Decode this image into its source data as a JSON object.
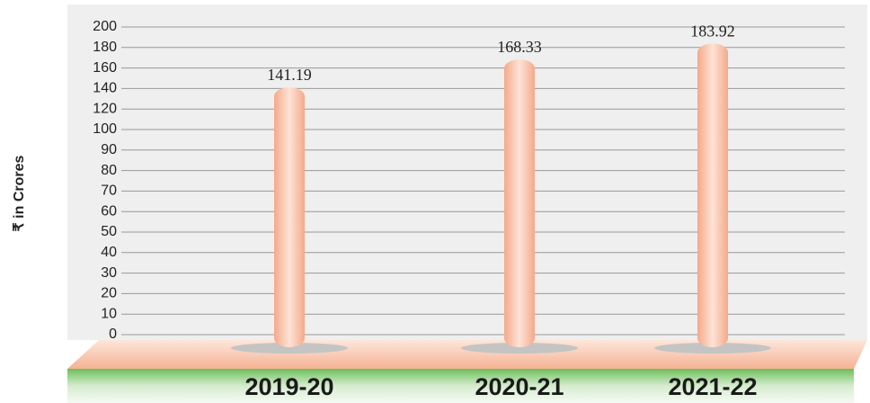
{
  "chart_data": {
    "type": "bar",
    "y_label": "₹ in Crores",
    "categories": [
      "2019-20",
      "2020-21",
      "2021-22"
    ],
    "values": [
      141.19,
      168.33,
      183.92
    ],
    "value_labels": [
      "141.19",
      "168.33",
      "183.92"
    ],
    "color": "#f7b99a",
    "ylim": [
      0,
      200
    ],
    "yticks": [
      0,
      10,
      20,
      30,
      40,
      50,
      60,
      70,
      80,
      90,
      100,
      120,
      140,
      160,
      180,
      200
    ],
    "grid": true
  }
}
